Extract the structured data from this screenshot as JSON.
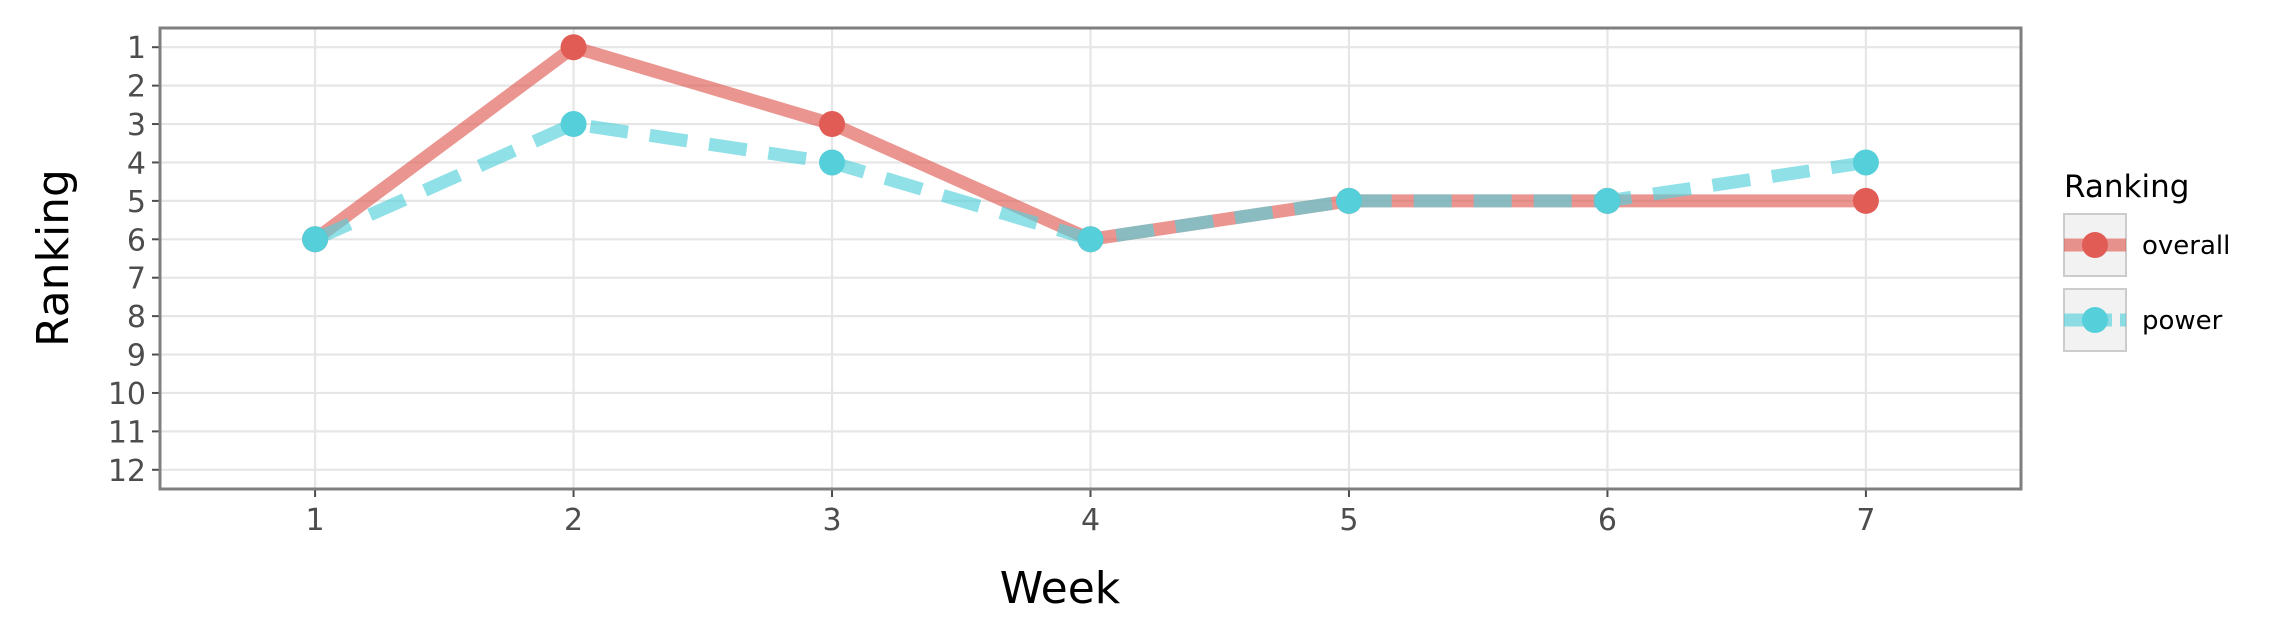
{
  "chart_data": {
    "type": "line",
    "xlabel": "Week",
    "ylabel": "Ranking",
    "x": [
      1,
      2,
      3,
      4,
      5,
      6,
      7
    ],
    "xlim": [
      0.4,
      7.6
    ],
    "ylim": [
      12.5,
      0.5
    ],
    "y_reversed": true,
    "y_ticks": [
      1,
      2,
      3,
      4,
      5,
      6,
      7,
      8,
      9,
      10,
      11,
      12
    ],
    "grid": true,
    "legend": {
      "title": "Ranking",
      "position": "right"
    },
    "series": [
      {
        "name": "overall",
        "values": [
          6,
          1,
          3,
          6,
          5,
          5,
          5
        ],
        "color": "#e05c55",
        "linestyle": "solid"
      },
      {
        "name": "power",
        "values": [
          6,
          3,
          4,
          6,
          5,
          5,
          4
        ],
        "color": "#55d0da",
        "linestyle": "dashed"
      }
    ]
  }
}
